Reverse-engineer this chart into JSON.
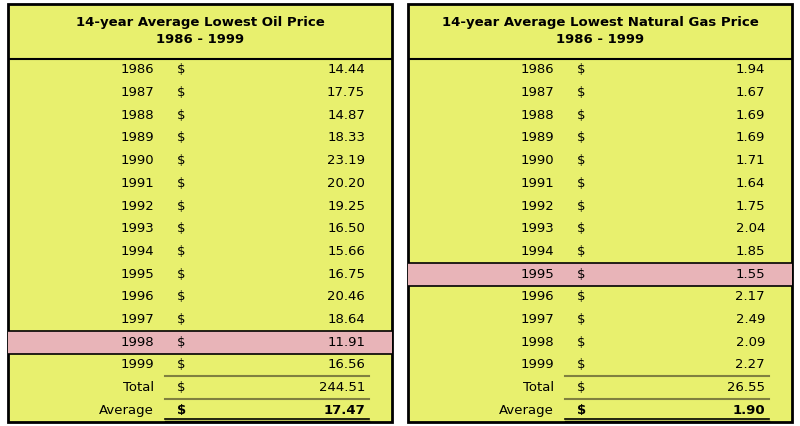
{
  "oil_title_line1": "14-year Average Lowest Oil Price",
  "oil_title_line2": "1986 - 1999",
  "gas_title_line1": "14-year Average Lowest Natural Gas Price",
  "gas_title_line2": "1986 - 1999",
  "years": [
    "1986",
    "1987",
    "1988",
    "1989",
    "1990",
    "1991",
    "1992",
    "1993",
    "1994",
    "1995",
    "1996",
    "1997",
    "1998",
    "1999"
  ],
  "oil_values": [
    "14.44",
    "17.75",
    "14.87",
    "18.33",
    "23.19",
    "20.20",
    "19.25",
    "16.50",
    "15.66",
    "16.75",
    "20.46",
    "18.64",
    "11.91",
    "16.56"
  ],
  "gas_values": [
    "1.94",
    "1.67",
    "1.69",
    "1.69",
    "1.71",
    "1.64",
    "1.75",
    "2.04",
    "1.85",
    "1.55",
    "2.17",
    "2.49",
    "2.09",
    "2.27"
  ],
  "oil_total": "244.51",
  "gas_total": "26.55",
  "oil_avg": "17.47",
  "gas_avg": "1.90",
  "oil_highlight_row": 12,
  "gas_highlight_row": 9,
  "bg_color": "#e8f06e",
  "highlight_color": "#e8b4b8",
  "border_color": "#000000",
  "separator_color": "#808040",
  "white_gap": "#ffffff",
  "fontsize": 9.5
}
